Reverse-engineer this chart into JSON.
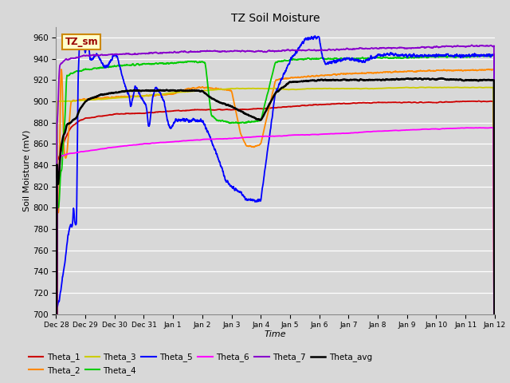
{
  "title": "TZ Soil Moisture",
  "xlabel": "Time",
  "ylabel": "Soil Moisture (mV)",
  "ylim": [
    700,
    970
  ],
  "bg_color": "#d8d8d8",
  "fig_color": "#c8c8c8",
  "label_box": {
    "text": "TZ_sm",
    "facecolor": "#ffffcc",
    "edgecolor": "#cc8800"
  },
  "colors": {
    "theta1": "#cc0000",
    "theta2": "#ff8800",
    "theta3": "#cccc00",
    "theta4": "#00cc00",
    "theta5": "#0000ff",
    "theta6": "#ff00ff",
    "theta7": "#8800cc",
    "theta_avg": "#000000"
  },
  "x_tick_labels": [
    "Dec 28",
    "Dec 29",
    "Dec 30",
    "Dec 31",
    "Jan 1",
    "Jan 2",
    "Jan 3",
    "Jan 4",
    "Jan 5",
    "Jan 6",
    "Jan 7",
    "Jan 8",
    "Jan 9",
    "Jan 10",
    "Jan 11",
    "Jan 12"
  ],
  "xlim": [
    0,
    15
  ],
  "figsize": [
    6.4,
    4.8
  ],
  "dpi": 100
}
